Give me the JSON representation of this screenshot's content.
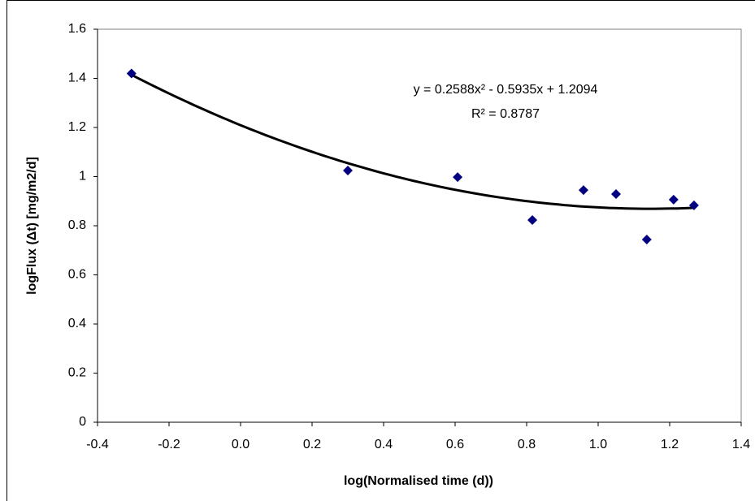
{
  "chart_data": {
    "type": "scatter",
    "x_label": "log(Normalised time (d))",
    "y_label": "logFlux (Δt) [mg/m2/d]",
    "series": [
      {
        "name": "logFlux",
        "color": "#000080",
        "x": [
          -0.305,
          0.3,
          0.607,
          0.816,
          0.959,
          1.05,
          1.136,
          1.211,
          1.268
        ],
        "values": [
          1.42,
          1.025,
          0.998,
          0.823,
          0.945,
          0.929,
          0.744,
          0.906,
          0.883
        ]
      }
    ],
    "trendline": {
      "type": "polynomial",
      "coefficients": [
        0.2588,
        -0.5935,
        1.2094
      ],
      "color": "#000000",
      "equation": "y = 0.2588x² - 0.5935x + 1.2094",
      "r_squared": "R² = 0.8787"
    },
    "xlim": [
      -0.4,
      1.4
    ],
    "xticks": [
      -0.4,
      -0.2,
      {
        "value": 0,
        "label": "0.0"
      },
      0.2,
      0.4,
      0.6,
      0.8,
      {
        "value": 1,
        "label": "1.0"
      },
      1.2,
      1.4
    ],
    "ylim": [
      0,
      1.6
    ],
    "yticks": [
      0,
      0.2,
      0.4,
      0.6,
      0.8,
      1,
      1.2,
      1.4,
      1.6
    ],
    "grid": false
  }
}
